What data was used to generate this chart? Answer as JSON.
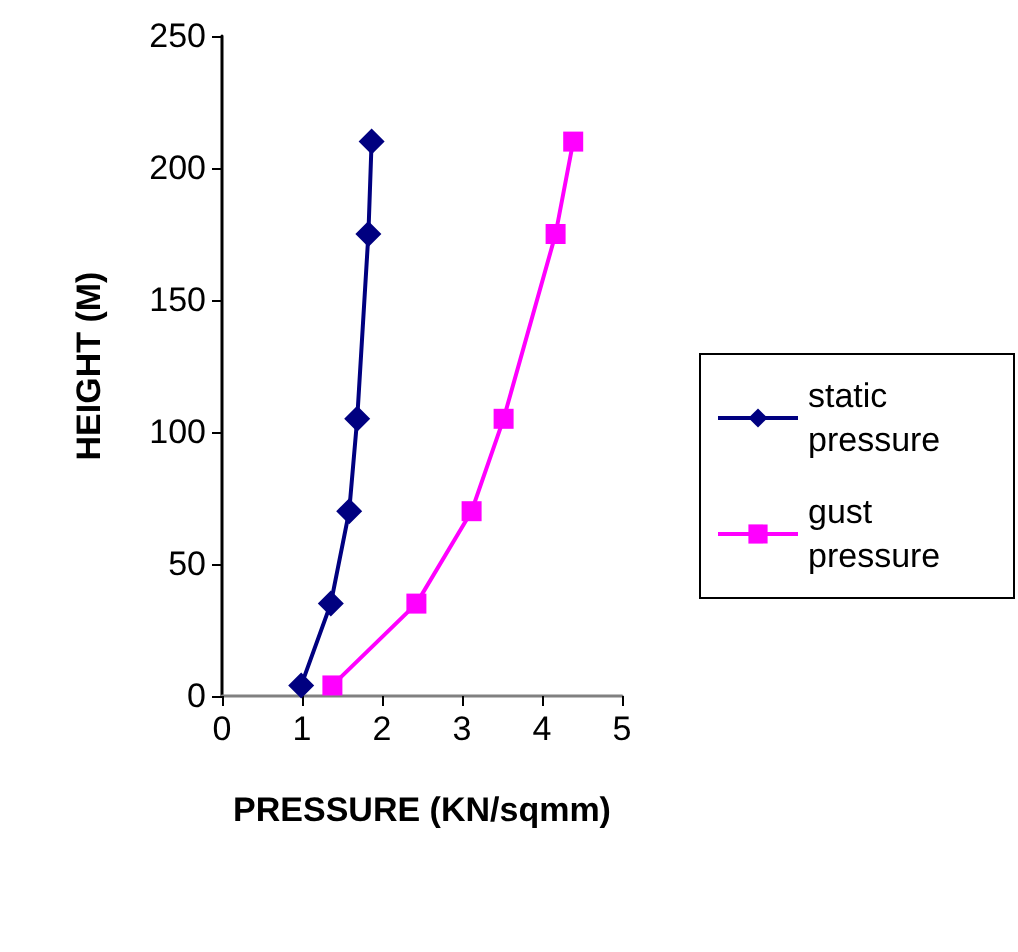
{
  "chart_data": {
    "type": "line",
    "xlabel": "PRESSURE (KN/sqmm)",
    "ylabel": "HEIGHT (M)",
    "xlim": [
      0,
      5
    ],
    "xticks": [
      0,
      1,
      2,
      3,
      4,
      5
    ],
    "ylim": [
      0,
      250
    ],
    "yticks": [
      0,
      50,
      100,
      150,
      200,
      250
    ],
    "grid": false,
    "legend": "right",
    "line_style": "solid",
    "series": [
      {
        "name": "static pressure",
        "color": "#000080",
        "marker": "diamond",
        "x": [
          0.99,
          1.36,
          1.59,
          1.69,
          1.83,
          1.87
        ],
        "values": [
          4,
          35,
          70,
          105,
          175,
          210
        ]
      },
      {
        "name": "gust pressure",
        "color": "#ff00ff",
        "marker": "square",
        "x": [
          1.38,
          2.43,
          3.12,
          3.52,
          4.17,
          4.39
        ],
        "values": [
          4,
          35,
          70,
          105,
          175,
          210
        ]
      }
    ]
  }
}
